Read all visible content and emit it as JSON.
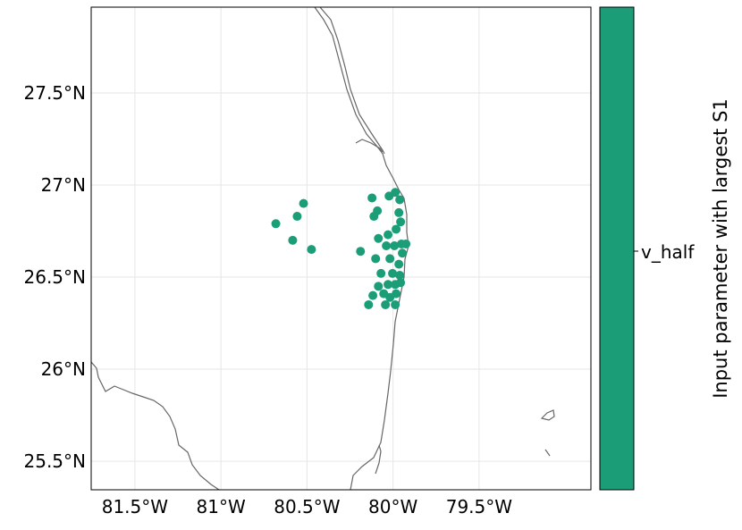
{
  "chart_data": {
    "type": "scatter",
    "title": "",
    "xlabel": "",
    "ylabel": "",
    "xlim": [
      -81.754,
      -78.85
    ],
    "ylim": [
      25.345,
      27.966
    ],
    "grid": true,
    "x_ticks": [
      {
        "value": -81.5,
        "label": "81.5°W"
      },
      {
        "value": -81.0,
        "label": "81°W"
      },
      {
        "value": -80.5,
        "label": "80.5°W"
      },
      {
        "value": -80.0,
        "label": "80°W"
      },
      {
        "value": -79.5,
        "label": "79.5°W"
      }
    ],
    "y_ticks": [
      {
        "value": 27.5,
        "label": "27.5°N"
      },
      {
        "value": 27.0,
        "label": "27°N"
      },
      {
        "value": 26.5,
        "label": "26.5°N"
      },
      {
        "value": 26.0,
        "label": "26°N"
      },
      {
        "value": 25.5,
        "label": "25.5°N"
      }
    ],
    "point_color": "#1b9e77",
    "coast_color": "#666666",
    "series": [
      {
        "name": "v_half",
        "points": [
          [
            -80.52,
            26.9
          ],
          [
            -80.557,
            26.83
          ],
          [
            -80.681,
            26.79
          ],
          [
            -80.583,
            26.7
          ],
          [
            -80.474,
            26.65
          ],
          [
            -80.189,
            26.64
          ],
          [
            -80.122,
            26.93
          ],
          [
            -80.091,
            26.86
          ],
          [
            -80.111,
            26.83
          ],
          [
            -80.023,
            26.94
          ],
          [
            -79.987,
            26.96
          ],
          [
            -79.961,
            26.92
          ],
          [
            -79.966,
            26.85
          ],
          [
            -79.956,
            26.8
          ],
          [
            -79.982,
            26.76
          ],
          [
            -80.029,
            26.73
          ],
          [
            -80.085,
            26.71
          ],
          [
            -80.039,
            26.67
          ],
          [
            -79.992,
            26.67
          ],
          [
            -79.951,
            26.68
          ],
          [
            -79.925,
            26.68
          ],
          [
            -79.946,
            26.63
          ],
          [
            -80.018,
            26.6
          ],
          [
            -80.101,
            26.6
          ],
          [
            -79.966,
            26.57
          ],
          [
            -80.07,
            26.52
          ],
          [
            -80.003,
            26.52
          ],
          [
            -79.961,
            26.51
          ],
          [
            -79.956,
            26.47
          ],
          [
            -80.029,
            26.46
          ],
          [
            -79.987,
            26.46
          ],
          [
            -80.085,
            26.45
          ],
          [
            -80.054,
            26.41
          ],
          [
            -80.117,
            26.4
          ],
          [
            -79.982,
            26.41
          ],
          [
            -80.018,
            26.39
          ],
          [
            -80.044,
            26.35
          ],
          [
            -80.142,
            26.35
          ],
          [
            -79.987,
            26.35
          ]
        ]
      }
    ],
    "colorbar": {
      "label": "Input parameter with largest S1",
      "ticks": [
        "v_half"
      ],
      "color": "#1b9e77"
    }
  }
}
